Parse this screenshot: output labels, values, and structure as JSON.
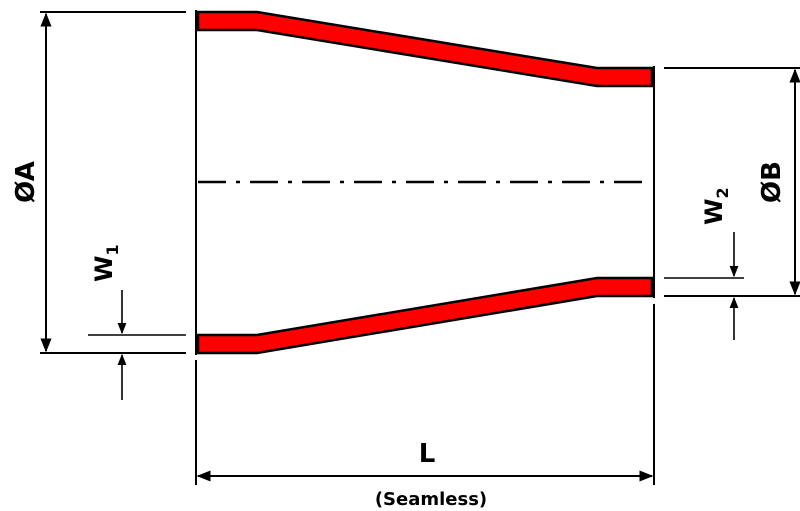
{
  "labels": {
    "dia_a": "ØA",
    "dia_b": "ØB",
    "wall_1_base": "W",
    "wall_1_sub": "1",
    "wall_2_base": "W",
    "wall_2_sub": "2",
    "length": "L",
    "caption": "(Seamless)"
  },
  "colors": {
    "wall_fill": "#ff0000",
    "line": "#000000",
    "background": "#ffffff"
  }
}
